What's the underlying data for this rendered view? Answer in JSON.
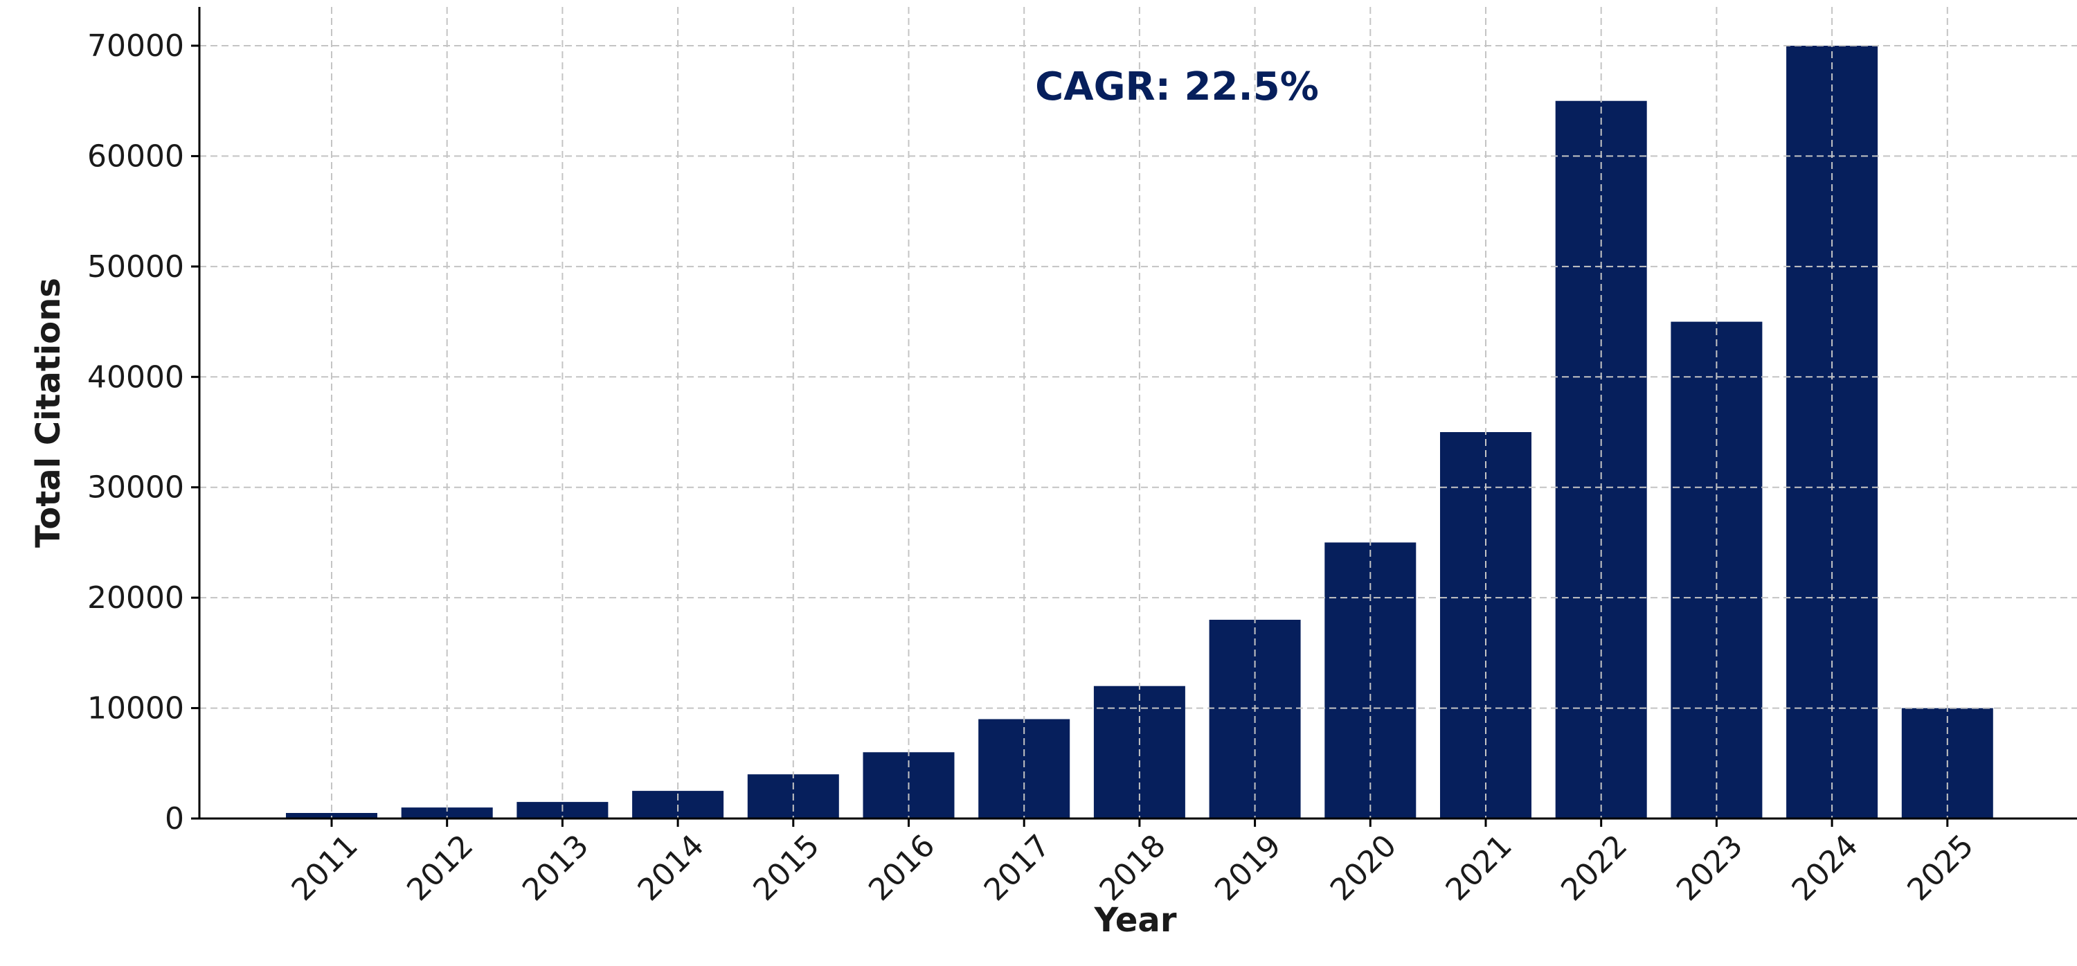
{
  "chart_data": {
    "type": "bar",
    "categories": [
      "2011",
      "2012",
      "2013",
      "2014",
      "2015",
      "2016",
      "2017",
      "2018",
      "2019",
      "2020",
      "2021",
      "2022",
      "2023",
      "2024",
      "2025"
    ],
    "values": [
      500,
      1000,
      1500,
      2500,
      4000,
      6000,
      9000,
      12000,
      18000,
      25000,
      35000,
      65000,
      45000,
      70000,
      10000
    ],
    "title": "",
    "xlabel": "Year",
    "ylabel": "Total Citations",
    "ylim": [
      0,
      70000
    ],
    "yticks": [
      0,
      10000,
      20000,
      30000,
      40000,
      50000,
      60000,
      70000
    ],
    "grid": true,
    "bar_color": "#061f5c",
    "annotation": {
      "text": "CAGR: 22.5%",
      "color": "#061f5c"
    }
  }
}
